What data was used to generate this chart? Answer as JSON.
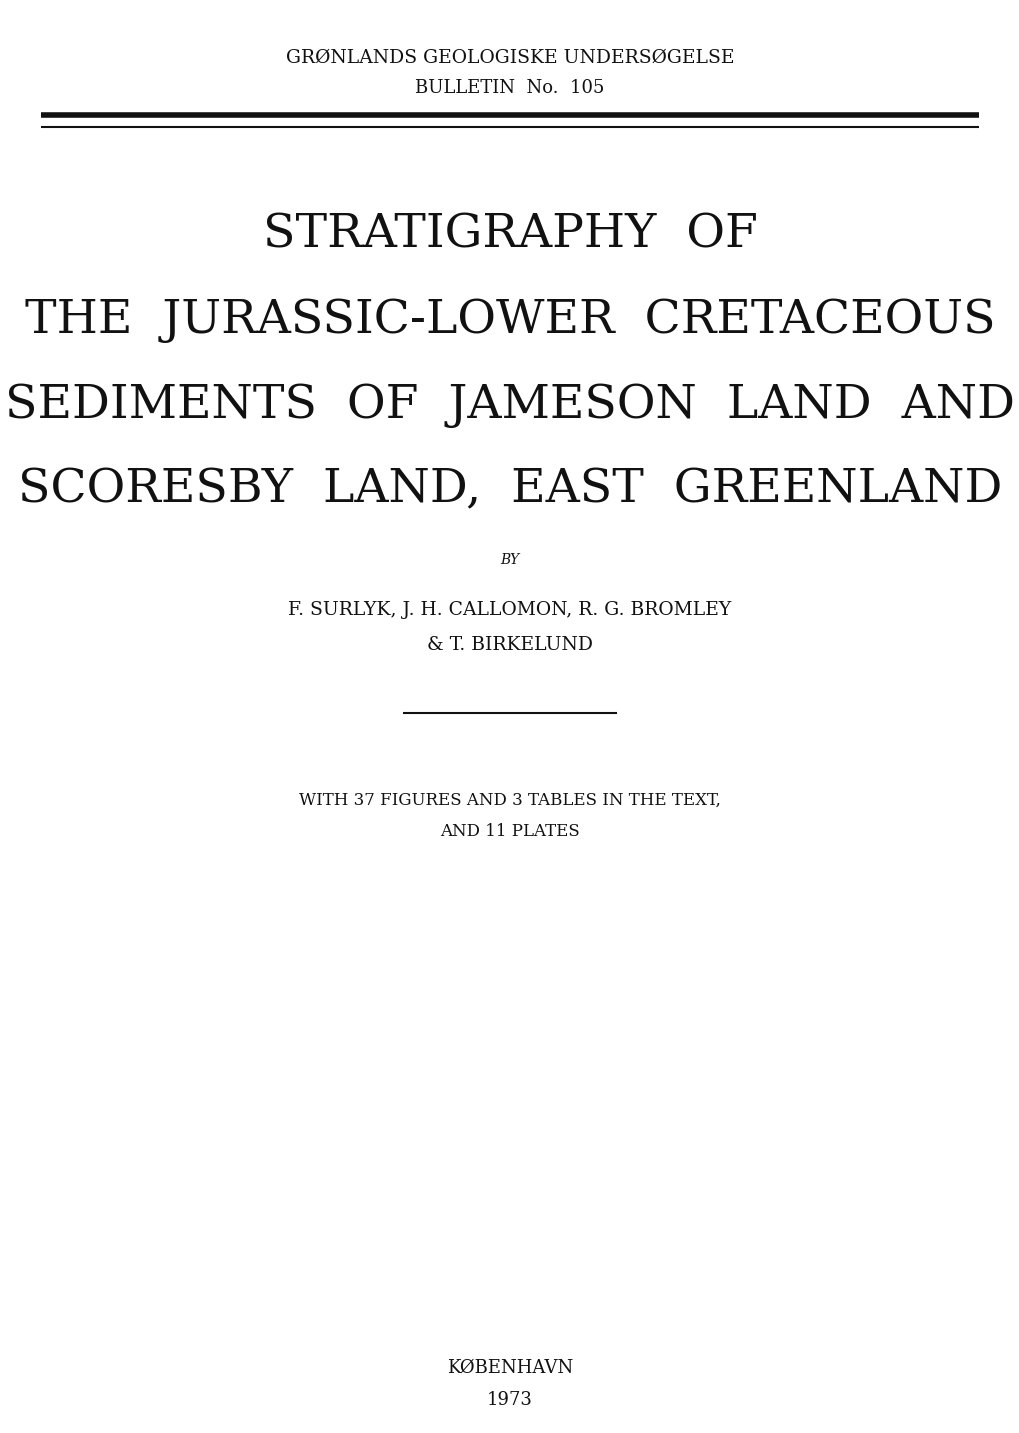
{
  "bg_color": "#ffffff",
  "text_color": "#111111",
  "header_line1": "GRØNLANDS GEOLOGISKE UNDERSØGELSE",
  "header_line2": "BULLETIN  No.  105",
  "title_line1": "STRATIGRAPHY  OF",
  "title_line2": "THE  JURASSIC-LOWER  CRETACEOUS",
  "title_line3": "SEDIMENTS  OF  JAMESON  LAND  AND",
  "title_line4": "SCORESBY  LAND,  EAST  GREENLAND",
  "by_text": "BY",
  "authors_line1": "F. SURLYK, J. H. CALLOMON, R. G. BROMLEY",
  "authors_line2": "& T. BIRKELUND",
  "figures_line1": "WITH 37 FIGURES AND 3 TABLES IN THE TEXT,",
  "figures_line2": "AND 11 PLATES",
  "publisher": "KØBENHAVN",
  "year": "1973",
  "header_fs": 13.5,
  "bulletin_fs": 13.0,
  "title_fs": 34,
  "by_fs": 10,
  "authors_fs": 13.5,
  "figures_fs": 12,
  "publisher_fs": 13
}
